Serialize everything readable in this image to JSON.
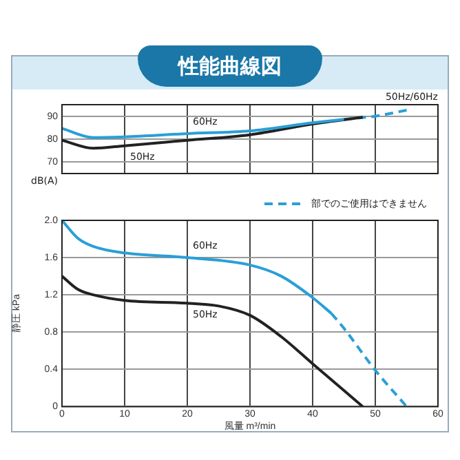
{
  "chart_data": [
    {
      "type": "line",
      "title": "性能曲線図",
      "ylabel": "dB(A)",
      "xlim": [
        0,
        60
      ],
      "xticks": [
        0,
        10,
        20,
        30,
        40,
        50,
        60
      ],
      "ylim": [
        65,
        95
      ],
      "yticks": [
        70,
        80,
        90
      ],
      "grid": true,
      "tick_labels": "y",
      "marker": "none",
      "legend": false,
      "annotations": [
        "50Hz/60Hz"
      ],
      "series": [
        {
          "name": "60Hz",
          "color": "#2a9fd6",
          "x": [
            0,
            5,
            10,
            20,
            30,
            40,
            45
          ],
          "values": [
            84.7,
            80.7,
            81,
            82.4,
            83.6,
            87.1,
            88.6
          ]
        },
        {
          "name": "50Hz",
          "color": "#222222",
          "x": [
            0,
            5,
            10,
            20,
            30,
            40,
            48
          ],
          "values": [
            79.5,
            76,
            77.1,
            79.5,
            81.9,
            86.6,
            89.5
          ]
        },
        {
          "color": "#2a9fd6",
          "line_style": "dashed",
          "x": [
            45,
            50,
            55
          ],
          "values": [
            88.6,
            90,
            92.6
          ]
        }
      ]
    },
    {
      "type": "line",
      "xlabel": "風量 m³/min",
      "ylabel": "静圧 kPa",
      "xlim": [
        0,
        60
      ],
      "xticks": [
        0,
        10,
        20,
        30,
        40,
        50,
        60
      ],
      "ylim": [
        0,
        2.0
      ],
      "yticks": [
        0,
        0.4,
        0.8,
        1.2,
        1.6,
        {
          "value": 2.0,
          "label": "2.0"
        }
      ],
      "grid": true,
      "marker": "none",
      "legend": "top right",
      "series": [
        {
          "name": "60Hz",
          "color": "#2a9fd6",
          "x": [
            0,
            2.5,
            5,
            10,
            20,
            30,
            35,
            40,
            43
          ],
          "values": [
            2.0,
            1.81,
            1.72,
            1.65,
            1.6,
            1.52,
            1.4,
            1.17,
            1.0
          ]
        },
        {
          "name": "50Hz",
          "color": "#222222",
          "x": [
            0,
            2.5,
            5,
            10,
            20,
            25,
            30,
            35,
            40,
            48
          ],
          "values": [
            1.4,
            1.26,
            1.2,
            1.14,
            1.11,
            1.08,
            0.98,
            0.75,
            0.46,
            0
          ]
        },
        {
          "name": "部でのご使用はできません",
          "color": "#2a9fd6",
          "line_style": "dashed",
          "x": [
            43,
            45,
            50,
            55
          ],
          "values": [
            1.0,
            0.84,
            0.39,
            0
          ]
        }
      ]
    }
  ]
}
